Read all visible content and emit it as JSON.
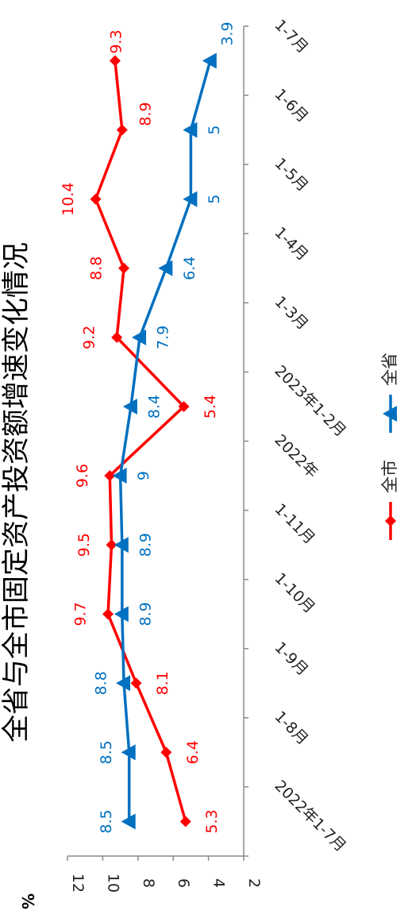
{
  "chart_data": {
    "type": "line",
    "title": "全省与全市固定资产投资额增速变化情况",
    "ylabel": "%",
    "ylim": [
      2,
      12
    ],
    "yticks": [
      2,
      4,
      6,
      8,
      10,
      12
    ],
    "categories": [
      "2022年1-7月",
      "1-8月",
      "1-9月",
      "1-10月",
      "1-11月",
      "2022年",
      "2023年1-2月",
      "1-3月",
      "1-4月",
      "1-5月",
      "1-6月",
      "1-7月"
    ],
    "series": [
      {
        "name": "全市",
        "color": "#ff0000",
        "marker": "diamond",
        "values": [
          5.3,
          6.4,
          8.1,
          9.7,
          9.5,
          9.6,
          5.4,
          9.2,
          8.8,
          10.4,
          8.9,
          9.3
        ]
      },
      {
        "name": "全省",
        "color": "#0070c0",
        "marker": "triangle",
        "values": [
          8.5,
          8.5,
          8.8,
          8.9,
          8.9,
          9,
          8.4,
          7.9,
          6.4,
          5,
          5,
          3.9
        ]
      }
    ],
    "legend_position": "bottom",
    "grid": false
  }
}
